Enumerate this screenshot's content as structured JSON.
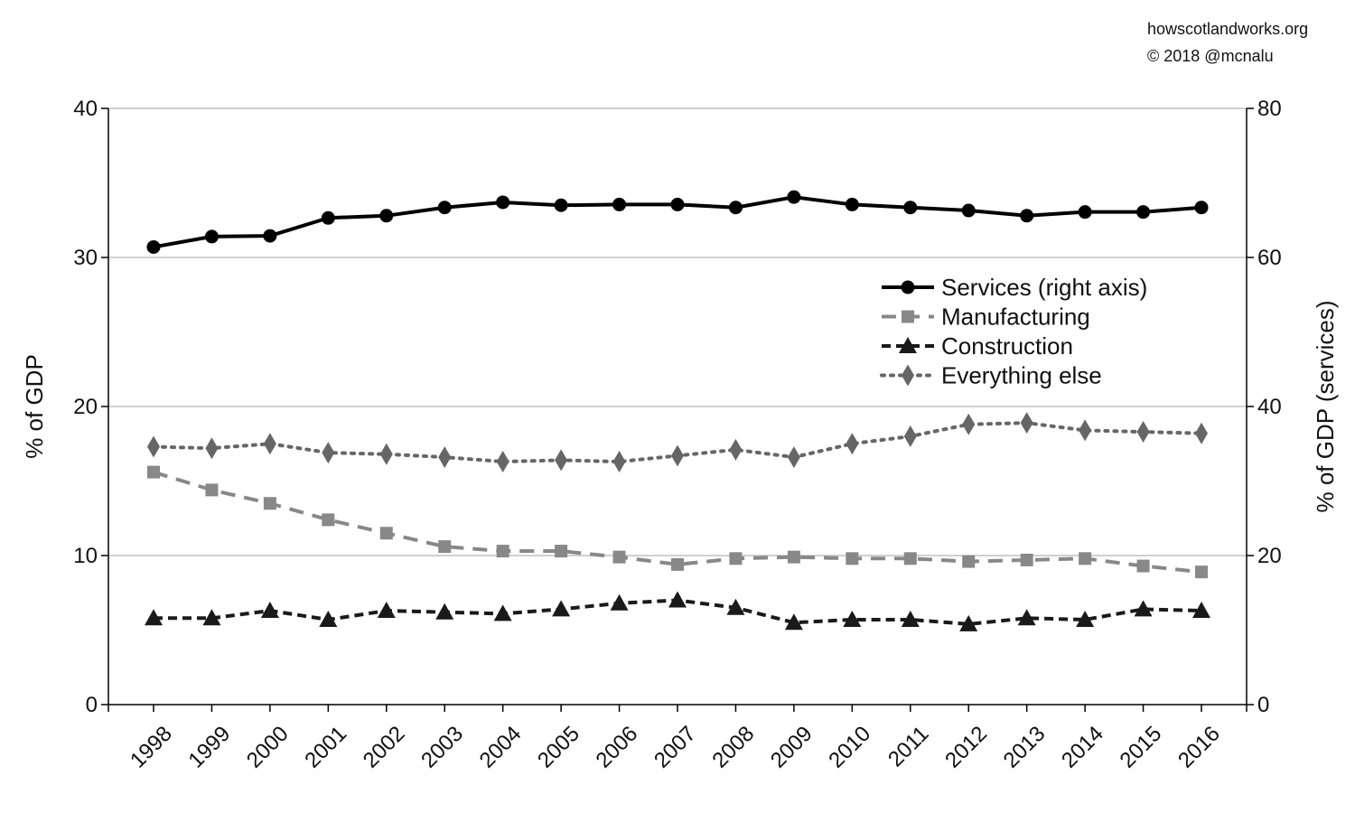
{
  "credits": {
    "site": "howscotlandworks.org",
    "copyright": "© 2018  @mcnalu"
  },
  "chart_data": {
    "type": "line",
    "title": "",
    "xlabel": "",
    "ylabel": "% of GDP",
    "y2label": "% of GDP (services)",
    "ylim": [
      0,
      40
    ],
    "y2lim": [
      0,
      80
    ],
    "yticks": [
      0,
      10,
      20,
      30,
      40
    ],
    "y2ticks": [
      0,
      20,
      40,
      60,
      80
    ],
    "grid": "horizontal",
    "legend_position": "right-center",
    "x": [
      "1998",
      "1999",
      "2000",
      "2001",
      "2002",
      "2003",
      "2004",
      "2005",
      "2006",
      "2007",
      "2008",
      "2009",
      "2010",
      "2011",
      "2012",
      "2013",
      "2014",
      "2015",
      "2016"
    ],
    "series": [
      {
        "name": "Services (right axis)",
        "axis": "right",
        "color": "#000000",
        "line": "solid",
        "marker": "circle",
        "values": [
          61.4,
          62.8,
          62.9,
          65.3,
          65.6,
          66.7,
          67.4,
          67.0,
          67.1,
          67.1,
          66.7,
          68.1,
          67.1,
          66.7,
          66.3,
          65.6,
          66.1,
          66.1,
          66.7
        ]
      },
      {
        "name": "Manufacturing",
        "axis": "left",
        "color": "#888888",
        "line": "dashed",
        "marker": "square",
        "values": [
          15.6,
          14.4,
          13.5,
          12.4,
          11.5,
          10.6,
          10.3,
          10.3,
          9.9,
          9.4,
          9.8,
          9.9,
          9.8,
          9.8,
          9.6,
          9.7,
          9.8,
          9.3,
          8.9
        ]
      },
      {
        "name": "Construction",
        "axis": "left",
        "color": "#1a1a1a",
        "line": "dashed",
        "marker": "triangle",
        "values": [
          5.8,
          5.8,
          6.3,
          5.7,
          6.3,
          6.2,
          6.1,
          6.4,
          6.8,
          7.0,
          6.5,
          5.5,
          5.7,
          5.7,
          5.4,
          5.8,
          5.7,
          6.4,
          6.3
        ]
      },
      {
        "name": "Everything else",
        "axis": "left",
        "color": "#666666",
        "line": "dotted",
        "marker": "diamond",
        "values": [
          17.3,
          17.2,
          17.5,
          16.9,
          16.8,
          16.6,
          16.3,
          16.4,
          16.3,
          16.7,
          17.1,
          16.6,
          17.5,
          18.0,
          18.8,
          18.9,
          18.4,
          18.3,
          18.2
        ]
      }
    ]
  }
}
